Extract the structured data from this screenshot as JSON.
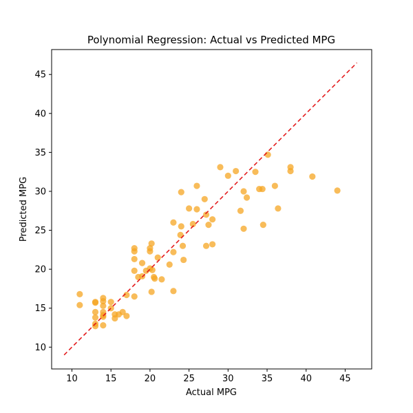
{
  "chart_data": {
    "type": "scatter",
    "title": "Polynomial Regression: Actual vs Predicted MPG",
    "xlabel": "Actual MPG",
    "ylabel": "Predicted MPG",
    "xlim": [
      7.4,
      48.4
    ],
    "ylim": [
      7.2,
      48.2
    ],
    "xticks": [
      10,
      15,
      20,
      25,
      30,
      35,
      40,
      45
    ],
    "yticks": [
      10,
      15,
      20,
      25,
      30,
      35,
      40,
      45
    ],
    "grid": false,
    "point_color": "#f5a623",
    "reference_line": {
      "style": "dashed",
      "color": "#e31a1c",
      "from": [
        9.0,
        9.0
      ],
      "to": [
        46.5,
        46.5
      ]
    },
    "series": [
      {
        "x": [
          11.0,
          11.0,
          13.0,
          13.0,
          13.0,
          13.0,
          13.0,
          13.0,
          14.0,
          14.0,
          14.0,
          14.0,
          14.0,
          14.0,
          14.0,
          15.0,
          15.0,
          15.5,
          15.5,
          16.0,
          16.5,
          17.0,
          17.0,
          18.0,
          18.0,
          18.0,
          18.0,
          18.0,
          18.5,
          19.0,
          19.0,
          19.5,
          20.0,
          20.0,
          20.0,
          20.2,
          20.2,
          20.3,
          20.5,
          20.6,
          21.0,
          21.5,
          22.5,
          23.0,
          23.0,
          23.0,
          23.9,
          24.0,
          24.0,
          24.2,
          24.3,
          25.0,
          25.5,
          26.0,
          26.0,
          27.0,
          27.2,
          27.2,
          27.5,
          28.0,
          28.0,
          29.0,
          30.0,
          31.0,
          31.6,
          32.0,
          32.0,
          32.4,
          33.5,
          34.0,
          34.4,
          34.5,
          35.1,
          36.0,
          36.4,
          38.0,
          38.0,
          40.8,
          44.0
        ],
        "y": [
          16.8,
          15.4,
          15.8,
          15.7,
          14.5,
          13.8,
          13.0,
          12.7,
          16.3,
          15.9,
          15.3,
          14.5,
          14.1,
          13.9,
          12.8,
          15.8,
          15.0,
          14.2,
          13.7,
          14.2,
          14.5,
          16.7,
          14.0,
          22.7,
          22.3,
          21.3,
          19.8,
          16.5,
          19.0,
          20.8,
          19.1,
          19.8,
          20.1,
          22.7,
          22.3,
          17.1,
          23.3,
          19.9,
          19.0,
          18.8,
          21.5,
          18.7,
          20.6,
          26.0,
          22.2,
          17.2,
          24.4,
          29.9,
          25.5,
          23.0,
          21.2,
          27.8,
          25.8,
          30.7,
          27.7,
          29.0,
          27.0,
          23.0,
          25.7,
          26.4,
          23.2,
          33.1,
          32.0,
          32.6,
          27.5,
          30.0,
          25.2,
          29.2,
          32.5,
          30.3,
          30.3,
          25.7,
          34.7,
          30.7,
          27.8,
          33.1,
          32.6,
          31.9,
          30.1
        ]
      }
    ]
  }
}
